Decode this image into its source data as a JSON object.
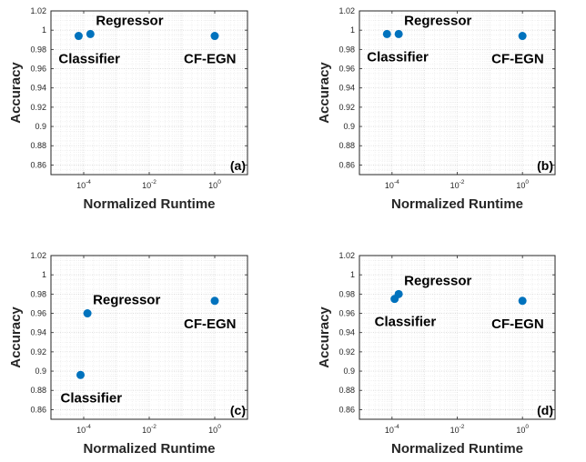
{
  "chart_data": [
    {
      "type": "scatter",
      "panel_label": "(a)",
      "xlabel": "Normalized Runtime",
      "ylabel": "Accuracy",
      "xscale": "log",
      "xlim_log10": [
        -5,
        1
      ],
      "ylim": [
        0.85,
        1.02
      ],
      "grid": true,
      "x_ticks": [
        {
          "log10": -4,
          "base": "10",
          "exp": "-4"
        },
        {
          "log10": -2,
          "base": "10",
          "exp": "-2"
        },
        {
          "log10": 0,
          "base": "10",
          "exp": "0"
        }
      ],
      "y_ticks": [
        "0.86",
        "0.88",
        "0.9",
        "0.92",
        "0.94",
        "0.96",
        "0.98",
        "1",
        "1.02"
      ],
      "color": "#0072BD",
      "points": [
        {
          "label": "Classifier",
          "x": 7e-05,
          "y": 0.994,
          "label_pos": "below"
        },
        {
          "label": "Regressor",
          "x": 0.00016,
          "y": 0.996,
          "label_pos": "above-right"
        },
        {
          "label": "CF-EGN",
          "x": 1.0,
          "y": 0.994,
          "label_pos": "below-left"
        }
      ]
    },
    {
      "type": "scatter",
      "panel_label": "(b)",
      "xlabel": "Normalized Runtime",
      "ylabel": "Accuracy",
      "xscale": "log",
      "xlim_log10": [
        -5,
        1
      ],
      "ylim": [
        0.85,
        1.02
      ],
      "grid": true,
      "x_ticks": [
        {
          "log10": -4,
          "base": "10",
          "exp": "-4"
        },
        {
          "log10": -2,
          "base": "10",
          "exp": "-2"
        },
        {
          "log10": 0,
          "base": "10",
          "exp": "0"
        }
      ],
      "y_ticks": [
        "0.86",
        "0.88",
        "0.9",
        "0.92",
        "0.94",
        "0.96",
        "0.98",
        "1",
        "1.02"
      ],
      "color": "#0072BD",
      "points": [
        {
          "label": "Classifier",
          "x": 7e-05,
          "y": 0.996,
          "label_pos": "below"
        },
        {
          "label": "Regressor",
          "x": 0.00016,
          "y": 0.996,
          "label_pos": "above-right"
        },
        {
          "label": "CF-EGN",
          "x": 1.0,
          "y": 0.994,
          "label_pos": "below-left"
        }
      ]
    },
    {
      "type": "scatter",
      "panel_label": "(c)",
      "xlabel": "Normalized Runtime",
      "ylabel": "Accuracy",
      "xscale": "log",
      "xlim_log10": [
        -5,
        1
      ],
      "ylim": [
        0.85,
        1.02
      ],
      "grid": true,
      "x_ticks": [
        {
          "log10": -4,
          "base": "10",
          "exp": "-4"
        },
        {
          "log10": -2,
          "base": "10",
          "exp": "-2"
        },
        {
          "log10": 0,
          "base": "10",
          "exp": "0"
        }
      ],
      "y_ticks": [
        "0.86",
        "0.88",
        "0.9",
        "0.92",
        "0.94",
        "0.96",
        "0.98",
        "1",
        "1.02"
      ],
      "color": "#0072BD",
      "points": [
        {
          "label": "Classifier",
          "x": 8e-05,
          "y": 0.896,
          "label_pos": "below"
        },
        {
          "label": "Regressor",
          "x": 0.00013,
          "y": 0.96,
          "label_pos": "above-right"
        },
        {
          "label": "CF-EGN",
          "x": 1.0,
          "y": 0.973,
          "label_pos": "below-left"
        }
      ]
    },
    {
      "type": "scatter",
      "panel_label": "(d)",
      "xlabel": "Normalized Runtime",
      "ylabel": "Accuracy",
      "xscale": "log",
      "xlim_log10": [
        -5,
        1
      ],
      "ylim": [
        0.85,
        1.02
      ],
      "grid": true,
      "x_ticks": [
        {
          "log10": -4,
          "base": "10",
          "exp": "-4"
        },
        {
          "log10": -2,
          "base": "10",
          "exp": "-2"
        },
        {
          "log10": 0,
          "base": "10",
          "exp": "0"
        }
      ],
      "y_ticks": [
        "0.86",
        "0.88",
        "0.9",
        "0.92",
        "0.94",
        "0.96",
        "0.98",
        "1",
        "1.02"
      ],
      "color": "#0072BD",
      "points": [
        {
          "label": "Classifier",
          "x": 0.00012,
          "y": 0.975,
          "label_pos": "below"
        },
        {
          "label": "Regressor",
          "x": 0.00016,
          "y": 0.98,
          "label_pos": "above-right"
        },
        {
          "label": "CF-EGN",
          "x": 1.0,
          "y": 0.973,
          "label_pos": "below-left"
        }
      ]
    }
  ]
}
